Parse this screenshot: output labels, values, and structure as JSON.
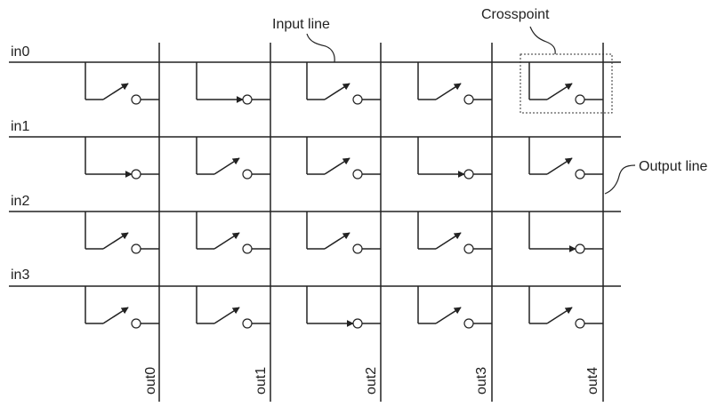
{
  "inputs": [
    "in0",
    "in1",
    "in2",
    "in3"
  ],
  "outputs": [
    "out0",
    "out1",
    "out2",
    "out3",
    "out4"
  ],
  "closed_crosspoints": [
    [
      0,
      1
    ],
    [
      1,
      0
    ],
    [
      1,
      3
    ],
    [
      2,
      4
    ],
    [
      3,
      2
    ]
  ],
  "labels": {
    "input_line": "Input line",
    "crosspoint": "Crosspoint",
    "output_line": "Output line"
  },
  "colors": {
    "stroke": "#222222",
    "text": "#222222",
    "background": "#ffffff"
  }
}
